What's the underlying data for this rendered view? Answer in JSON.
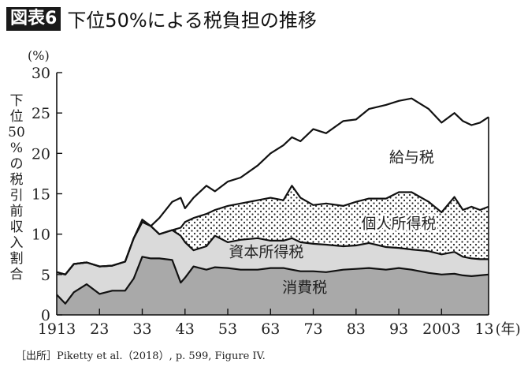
{
  "header": {
    "figure_label": "図表6",
    "title": "下位50%による税負担の推移"
  },
  "source": "［出所］Piketty et al.（2018）, p. 599, Figure IV.",
  "chart_data": {
    "type": "area",
    "stacked": true,
    "title": "下位50%による税負担の推移",
    "xlabel": "(年)",
    "ylabel": "下位50%の税引前収入割合",
    "yunit": "(%)",
    "ylim": [
      0,
      30
    ],
    "xlim": [
      1913,
      2014
    ],
    "yticks": [
      0,
      5,
      10,
      15,
      20,
      25,
      30
    ],
    "xticks": [
      "1913",
      "23",
      "33",
      "43",
      "53",
      "63",
      "73",
      "83",
      "93",
      "2003",
      "13"
    ],
    "grid": false,
    "legend": "inline labels",
    "x": [
      1913,
      1915,
      1917,
      1920,
      1923,
      1926,
      1929,
      1931,
      1933,
      1935,
      1937,
      1940,
      1942,
      1943,
      1945,
      1948,
      1950,
      1953,
      1956,
      1960,
      1963,
      1966,
      1968,
      1970,
      1973,
      1976,
      1980,
      1983,
      1986,
      1990,
      1993,
      1996,
      2000,
      2003,
      2006,
      2008,
      2010,
      2012,
      2014
    ],
    "series": [
      {
        "name": "消費税",
        "label_position": [
          1971,
          2.8
        ],
        "cumulative": [
          2.5,
          1.4,
          2.8,
          3.8,
          2.6,
          3.0,
          3.0,
          4.5,
          7.2,
          7.0,
          7.0,
          6.8,
          4.0,
          4.6,
          6.0,
          5.6,
          5.9,
          5.8,
          5.6,
          5.6,
          5.8,
          5.8,
          5.6,
          5.4,
          5.4,
          5.3,
          5.6,
          5.7,
          5.8,
          5.6,
          5.8,
          5.6,
          5.2,
          5.0,
          5.1,
          4.9,
          4.8,
          4.9,
          5.0
        ]
      },
      {
        "name": "資本所得税",
        "label_position": [
          1962,
          7.2
        ],
        "cumulative": [
          5.3,
          5.0,
          6.3,
          6.5,
          6.0,
          6.1,
          6.6,
          9.5,
          11.5,
          11.0,
          10.0,
          10.5,
          9.8,
          9.0,
          8.0,
          8.5,
          9.8,
          9.0,
          9.3,
          9.5,
          9.2,
          9.2,
          9.5,
          9.0,
          8.8,
          8.7,
          8.5,
          8.6,
          8.9,
          8.4,
          8.3,
          8.1,
          7.9,
          7.5,
          7.8,
          7.2,
          7.0,
          6.9,
          6.9
        ]
      },
      {
        "name": "個人所得税",
        "label_position": [
          1993,
          10.7
        ],
        "cumulative": [
          5.3,
          5.0,
          6.3,
          6.5,
          6.0,
          6.1,
          6.6,
          9.5,
          11.5,
          11.0,
          10.0,
          10.5,
          10.8,
          11.5,
          12.0,
          12.5,
          13.0,
          13.5,
          13.8,
          14.2,
          14.5,
          14.2,
          16.0,
          14.5,
          13.6,
          13.8,
          13.5,
          14.0,
          14.4,
          14.4,
          15.2,
          15.2,
          14.0,
          12.7,
          14.6,
          13.0,
          13.4,
          13.0,
          13.4
        ]
      },
      {
        "name": "給与税",
        "label_position": [
          1996,
          18.9
        ],
        "cumulative": [
          5.3,
          5.0,
          6.3,
          6.5,
          6.0,
          6.1,
          6.6,
          9.5,
          11.8,
          11.0,
          12.0,
          14.0,
          14.5,
          13.2,
          14.5,
          16.0,
          15.3,
          16.5,
          17.0,
          18.5,
          20.0,
          21.0,
          22.0,
          21.5,
          23.0,
          22.5,
          24.0,
          24.2,
          25.5,
          26.0,
          26.5,
          26.8,
          25.5,
          23.8,
          25.0,
          24.0,
          23.5,
          23.8,
          24.5
        ]
      }
    ]
  }
}
